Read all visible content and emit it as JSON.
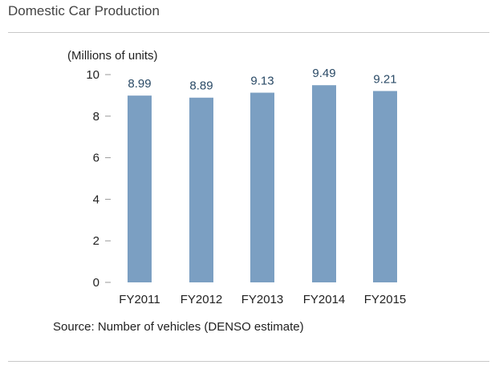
{
  "page": {
    "title": "Domestic Car Production",
    "source": "Source: Number of vehicles (DENSO estimate)"
  },
  "chart_data": {
    "type": "bar",
    "title": "",
    "ylabel": "(Millions of units)",
    "xlabel": "",
    "categories": [
      "FY2011",
      "FY2012",
      "FY2013",
      "FY2014",
      "FY2015"
    ],
    "series": [
      {
        "values": [
          8.99,
          8.89,
          9.13,
          9.49,
          9.21
        ]
      }
    ],
    "data_labels": [
      "8.99",
      "8.89",
      "9.13",
      "9.49",
      "9.21"
    ],
    "ylim": [
      0,
      10
    ],
    "yticks": [
      0,
      2,
      4,
      6,
      8,
      10
    ],
    "grid": false,
    "legend": "none",
    "colors": {
      "bar": "#7b9fc2",
      "data_label": "#2a4a66",
      "axis": "#999999"
    }
  }
}
